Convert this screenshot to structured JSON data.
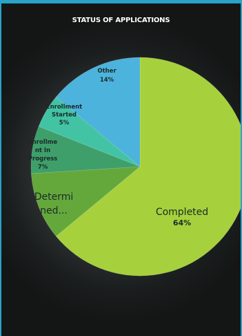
{
  "chart_data": {
    "type": "pie",
    "title": "STATUS OF APPLICATIONS",
    "slices": [
      {
        "label": "Completed",
        "value": 64,
        "value_label": "64%",
        "color": "#a6d13c",
        "label_lines": [
          "Completed",
          "64%"
        ]
      },
      {
        "label": "Determined...",
        "value": 10,
        "value_label": "",
        "color": "#64a83c",
        "label_lines": [
          "Determi",
          "ned..."
        ]
      },
      {
        "label": "Enrollment In Progress",
        "value": 7,
        "value_label": "7%",
        "color": "#3e9f6a",
        "label_lines": [
          "Enrollme",
          "nt In",
          "Progress",
          "7%"
        ]
      },
      {
        "label": "Enrollment Started",
        "value": 5,
        "value_label": "5%",
        "color": "#42c4a4",
        "label_lines": [
          "Enrollment",
          "Started",
          "5%"
        ]
      },
      {
        "label": "Other",
        "value": 14,
        "value_label": "14%",
        "color": "#4cb3dc",
        "label_lines": [
          "Other",
          "14%"
        ]
      }
    ],
    "legend": "none",
    "start_angle_deg": 0,
    "direction": "clockwise"
  }
}
